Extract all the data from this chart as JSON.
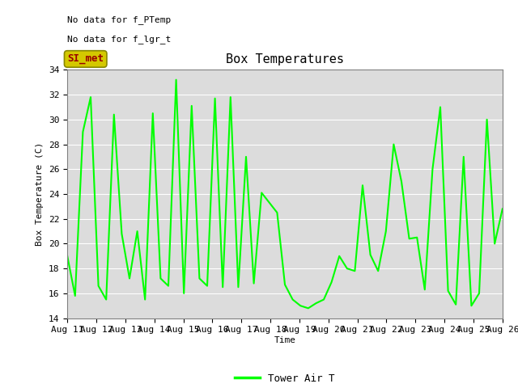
{
  "title": "Box Temperatures",
  "ylabel": "Box Temperature (C)",
  "xlabel": "Time",
  "text_no_data_1": "No data for f_PTemp",
  "text_no_data_2": "No data for f_lgr_t",
  "legend_label": "Tower Air T",
  "legend_color": "#00FF00",
  "line_color": "#00FF00",
  "background_color": "#DCDCDC",
  "fig_color": "#FFFFFF",
  "ylim": [
    14,
    34
  ],
  "yticks": [
    14,
    16,
    18,
    20,
    22,
    24,
    26,
    28,
    30,
    32,
    34
  ],
  "x_labels": [
    "Aug 11",
    "Aug 12",
    "Aug 13",
    "Aug 14",
    "Aug 15",
    "Aug 16",
    "Aug 17",
    "Aug 18",
    "Aug 19",
    "Aug 20",
    "Aug 21",
    "Aug 22",
    "Aug 23",
    "Aug 24",
    "Aug 25",
    "Aug 26"
  ],
  "si_met_box_facecolor": "#D4C800",
  "si_met_box_edgecolor": "#888800",
  "si_met_text_color": "#990000",
  "tower_air_t": [
    19.0,
    15.8,
    29.0,
    31.8,
    16.6,
    15.5,
    30.4,
    20.8,
    17.2,
    21.0,
    15.5,
    30.5,
    17.2,
    16.6,
    33.2,
    16.0,
    31.1,
    17.2,
    16.6,
    31.7,
    16.5,
    31.8,
    16.5,
    27.0,
    16.8,
    24.1,
    23.3,
    22.5,
    16.7,
    15.5,
    15.0,
    14.8,
    15.2,
    15.5,
    16.9,
    19.0,
    18.0,
    17.8,
    24.7,
    19.1,
    17.8,
    21.0,
    28.0,
    25.0,
    20.4,
    20.5,
    16.3,
    26.0,
    31.0,
    16.2,
    15.1,
    27.0,
    15.0,
    16.0,
    30.0,
    20.0,
    22.8
  ],
  "title_fontsize": 11,
  "axis_label_fontsize": 8,
  "tick_fontsize": 8,
  "legend_fontsize": 9
}
